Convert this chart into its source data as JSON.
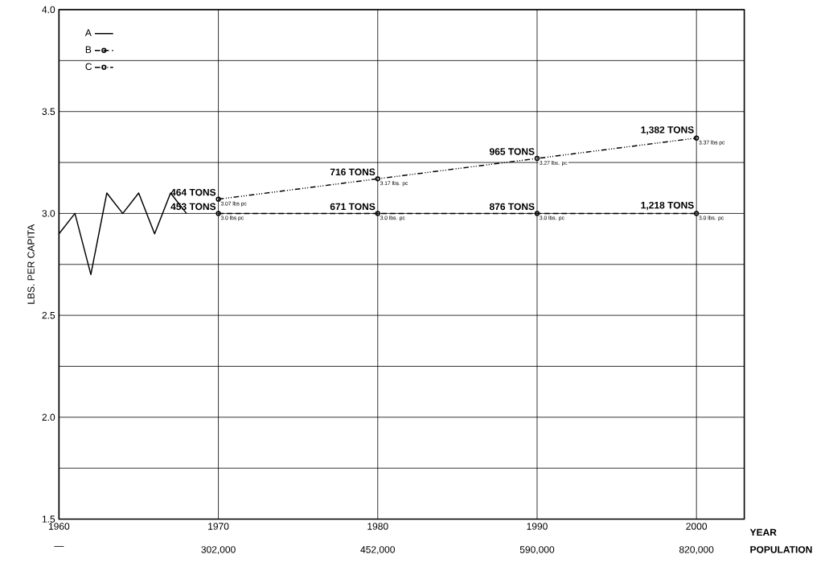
{
  "chart_data": {
    "type": "line",
    "xlabel": "YEAR",
    "ylabel": "LBS. PER CAPITA",
    "x": [
      1970,
      1980,
      1990,
      2000
    ],
    "series": [
      {
        "name": "A",
        "color": "#000000",
        "line_style": "solid",
        "marker": "none",
        "x": [
          1960,
          1961,
          1962,
          1963,
          1964,
          1965,
          1966,
          1967,
          1968
        ],
        "values": [
          2.9,
          3.0,
          2.7,
          3.1,
          3.0,
          3.1,
          2.9,
          3.1,
          3.0
        ]
      },
      {
        "name": "B",
        "color": "#000000",
        "line_style": "dashed",
        "marker": "circle",
        "values": [
          3.0,
          3.0,
          3.0,
          3.0
        ],
        "value_labels": [
          "3.0 lbs pc",
          "3.0 lbs. pc",
          "3.0 lbs. pc",
          "3.0 lbs. pc"
        ]
      },
      {
        "name": "C",
        "color": "#000000",
        "line_style": "dotted",
        "marker": "circle",
        "values": [
          3.07,
          3.17,
          3.27,
          3.37
        ],
        "value_labels": [
          "3.07 lbs pc",
          "3.17 lbs. pc",
          "3.27 lbs. pc",
          "3.37 lbs pc"
        ]
      }
    ],
    "xlim": [
      1960,
      2003
    ],
    "xticks": [
      1960,
      1970,
      1980,
      1990,
      2000
    ],
    "ylim": [
      1.5,
      4.0
    ],
    "yticks": [
      1.5,
      {
        "value": 1.75,
        "label": null
      },
      {
        "value": 2.0,
        "label": "2.0"
      },
      {
        "value": 2.25,
        "label": null
      },
      2.5,
      {
        "value": 2.75,
        "label": null
      },
      {
        "value": 3.0,
        "label": "3.0"
      },
      {
        "value": 3.25,
        "label": null
      },
      3.5,
      {
        "value": 3.75,
        "label": null
      },
      {
        "value": 4.0,
        "label": "4.0"
      }
    ],
    "grid": true,
    "legend": "top left",
    "annotations": [
      {
        "text": "464 TONS",
        "x": 1970,
        "y": 3.07
      },
      {
        "text": "453 TONS",
        "x": 1970,
        "y": 3.0
      },
      {
        "text": "716 TONS",
        "x": 1980,
        "y": 3.17
      },
      {
        "text": "671 TONS",
        "x": 1980,
        "y": 3.0
      },
      {
        "text": "965 TONS",
        "x": 1990,
        "y": 3.27
      },
      {
        "text": "876 TONS",
        "x": 1990,
        "y": 3.0
      },
      {
        "text": "1,382 TONS",
        "x": 2000,
        "y": 3.37
      },
      {
        "text": "1,218 TONS",
        "x": 2000,
        "y": 3.0
      },
      "—",
      "302,000",
      "452,000",
      "590,000",
      "820,000",
      "POPULATION"
    ]
  }
}
